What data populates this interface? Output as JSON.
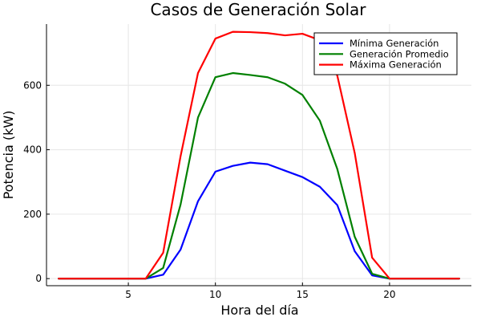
{
  "chart_data": {
    "type": "line",
    "title": "Casos de Generación Solar",
    "xlabel": "Hora del día",
    "ylabel": "Potencia (kW)",
    "xlim": [
      0.3,
      24.7
    ],
    "ylim": [
      -22,
      790
    ],
    "xticks": [
      5,
      10,
      15,
      20
    ],
    "yticks": [
      0,
      200,
      400,
      600
    ],
    "grid": true,
    "legend_position": "top-right",
    "x": [
      1,
      2,
      3,
      4,
      5,
      6,
      7,
      8,
      9,
      10,
      11,
      12,
      13,
      14,
      15,
      16,
      17,
      18,
      19,
      20,
      21,
      22,
      23,
      24
    ],
    "series": [
      {
        "name": "Mínima Generación",
        "color": "#0000ff",
        "values": [
          0,
          0,
          0,
          0,
          0,
          0,
          12,
          90,
          240,
          332,
          350,
          360,
          355,
          335,
          315,
          285,
          228,
          85,
          10,
          0,
          0,
          0,
          0,
          0
        ]
      },
      {
        "name": "Generación Promedio",
        "color": "#008000",
        "values": [
          0,
          0,
          0,
          0,
          0,
          0,
          33,
          230,
          500,
          625,
          638,
          632,
          625,
          605,
          570,
          490,
          340,
          130,
          15,
          0,
          0,
          0,
          0,
          0
        ]
      },
      {
        "name": "Máxima Generación",
        "color": "#ff0000",
        "values": [
          0,
          0,
          0,
          0,
          0,
          0,
          80,
          380,
          638,
          745,
          766,
          765,
          762,
          755,
          760,
          740,
          630,
          390,
          65,
          0,
          0,
          0,
          0,
          0
        ]
      }
    ]
  }
}
